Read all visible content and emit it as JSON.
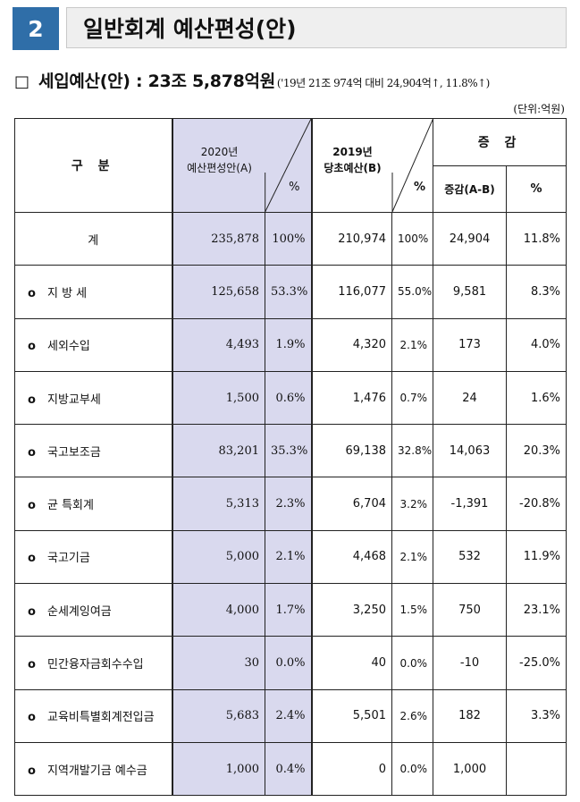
{
  "section": {
    "number": "2",
    "title": "일반회계 예산편성(안)"
  },
  "summary": {
    "bullet": "□",
    "main": "세입예산(안) : 23조 5,878억원",
    "note": "('19년 21조 974억 대비 24,904억↑, 11.8%↑)"
  },
  "unit": "(단위:억원)",
  "table": {
    "headers": {
      "category": "구 분",
      "budget2020_line1": "2020년",
      "budget2020_line2": "예산편성안(A)",
      "pct": "%",
      "budget2019_line1": "2019년",
      "budget2019_line2": "당초예산(B)",
      "change": "증 감",
      "change_amount": "증감(A-B)",
      "change_pct": "%"
    },
    "rows": [
      {
        "label": "계",
        "a": "235,878",
        "a_pct": "100%",
        "b": "210,974",
        "b_pct": "100%",
        "diff": "24,904",
        "diff_pct": "11.8%"
      },
      {
        "label": "지 방 세",
        "a": "125,658",
        "a_pct": "53.3%",
        "b": "116,077",
        "b_pct": "55.0%",
        "diff": "9,581",
        "diff_pct": "8.3%"
      },
      {
        "label": "세외수입",
        "a": "4,493",
        "a_pct": "1.9%",
        "b": "4,320",
        "b_pct": "2.1%",
        "diff": "173",
        "diff_pct": "4.0%"
      },
      {
        "label": "지방교부세",
        "a": "1,500",
        "a_pct": "0.6%",
        "b": "1,476",
        "b_pct": "0.7%",
        "diff": "24",
        "diff_pct": "1.6%"
      },
      {
        "label": "국고보조금",
        "a": "83,201",
        "a_pct": "35.3%",
        "b": "69,138",
        "b_pct": "32.8%",
        "diff": "14,063",
        "diff_pct": "20.3%"
      },
      {
        "label": "균 특회계",
        "a": "5,313",
        "a_pct": "2.3%",
        "b": "6,704",
        "b_pct": "3.2%",
        "diff": "-1,391",
        "diff_pct": "-20.8%"
      },
      {
        "label": "국고기금",
        "a": "5,000",
        "a_pct": "2.1%",
        "b": "4,468",
        "b_pct": "2.1%",
        "diff": "532",
        "diff_pct": "11.9%"
      },
      {
        "label": "순세계잉여금",
        "a": "4,000",
        "a_pct": "1.7%",
        "b": "3,250",
        "b_pct": "1.5%",
        "diff": "750",
        "diff_pct": "23.1%"
      },
      {
        "label": "민간융자금회수수입",
        "a": "30",
        "a_pct": "0.0%",
        "b": "40",
        "b_pct": "0.0%",
        "diff": "-10",
        "diff_pct": "-25.0%"
      },
      {
        "label": "교육비특별회계전입금",
        "a": "5,683",
        "a_pct": "2.4%",
        "b": "5,501",
        "b_pct": "2.6%",
        "diff": "182",
        "diff_pct": "3.3%"
      },
      {
        "label": "지역개발기금 예수금",
        "a": "1,000",
        "a_pct": "0.4%",
        "b": "0",
        "b_pct": "0.0%",
        "diff": "1,000",
        "diff_pct": ""
      }
    ],
    "item_bullet": "o"
  }
}
